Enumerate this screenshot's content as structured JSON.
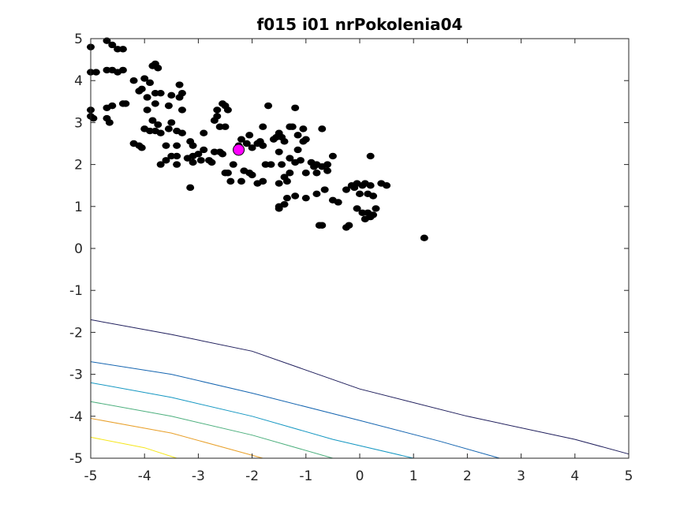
{
  "chart_data": {
    "type": "scatter",
    "title": "f015 i01 nrPokolenia04",
    "xlabel": "",
    "ylabel": "",
    "xlim": [
      -5,
      5
    ],
    "ylim": [
      -5,
      5
    ],
    "xticks": [
      -5,
      -4,
      -3,
      -2,
      -1,
      0,
      1,
      2,
      3,
      4,
      5
    ],
    "yticks": [
      -5,
      -4,
      -3,
      -2,
      -1,
      0,
      1,
      2,
      3,
      4,
      5
    ],
    "grid": false,
    "colors": {
      "points": "#000000",
      "best": "#ff00ff",
      "contours": [
        "#1f1e5c",
        "#1565b0",
        "#1597c2",
        "#4caf7d",
        "#e8a02a",
        "#f5e61a"
      ]
    },
    "contours": [
      {
        "color": "#1f1e5c",
        "points": [
          [
            -5,
            -1.7
          ],
          [
            -3.5,
            -2.05
          ],
          [
            -2,
            -2.45
          ],
          [
            0,
            -3.35
          ],
          [
            2,
            -4.0
          ],
          [
            4,
            -4.55
          ],
          [
            5,
            -4.9
          ]
        ]
      },
      {
        "color": "#1565b0",
        "points": [
          [
            -5,
            -2.7
          ],
          [
            -3.5,
            -3.0
          ],
          [
            -2,
            -3.45
          ],
          [
            0,
            -4.1
          ],
          [
            1.5,
            -4.6
          ],
          [
            2.6,
            -5.0
          ]
        ]
      },
      {
        "color": "#1597c2",
        "points": [
          [
            -5,
            -3.2
          ],
          [
            -3.5,
            -3.55
          ],
          [
            -2,
            -4.0
          ],
          [
            -0.5,
            -4.55
          ],
          [
            1.0,
            -5.0
          ]
        ]
      },
      {
        "color": "#4caf7d",
        "points": [
          [
            -5,
            -3.65
          ],
          [
            -3.5,
            -4.0
          ],
          [
            -2,
            -4.45
          ],
          [
            -0.5,
            -5.0
          ]
        ]
      },
      {
        "color": "#e8a02a",
        "points": [
          [
            -5,
            -4.05
          ],
          [
            -3.5,
            -4.4
          ],
          [
            -1.8,
            -5.0
          ]
        ]
      },
      {
        "color": "#f5e61a",
        "points": [
          [
            -5,
            -4.5
          ],
          [
            -4,
            -4.75
          ],
          [
            -3.4,
            -5.0
          ]
        ]
      }
    ],
    "series": [
      {
        "marker": "circle",
        "points": [
          [
            -5.0,
            4.8
          ],
          [
            -4.7,
            4.95
          ],
          [
            -4.6,
            4.85
          ],
          [
            -4.5,
            4.75
          ],
          [
            -4.4,
            4.75
          ],
          [
            -5.0,
            4.2
          ],
          [
            -4.9,
            4.2
          ],
          [
            -4.7,
            4.25
          ],
          [
            -4.6,
            4.25
          ],
          [
            -4.5,
            4.2
          ],
          [
            -4.4,
            4.25
          ],
          [
            -4.2,
            4.0
          ],
          [
            -4.0,
            4.05
          ],
          [
            -3.8,
            4.4
          ],
          [
            -3.85,
            4.35
          ],
          [
            -3.75,
            4.3
          ],
          [
            -3.9,
            3.95
          ],
          [
            -4.05,
            3.8
          ],
          [
            -4.1,
            3.75
          ],
          [
            -3.95,
            3.6
          ],
          [
            -3.8,
            3.7
          ],
          [
            -3.7,
            3.7
          ],
          [
            -3.5,
            3.65
          ],
          [
            -3.35,
            3.9
          ],
          [
            -3.3,
            3.7
          ],
          [
            -3.35,
            3.6
          ],
          [
            -5.0,
            3.3
          ],
          [
            -5.0,
            3.15
          ],
          [
            -4.95,
            3.1
          ],
          [
            -4.7,
            3.35
          ],
          [
            -4.6,
            3.4
          ],
          [
            -4.4,
            3.45
          ],
          [
            -4.35,
            3.45
          ],
          [
            -4.7,
            3.1
          ],
          [
            -4.65,
            3.0
          ],
          [
            -3.8,
            3.45
          ],
          [
            -3.95,
            3.3
          ],
          [
            -3.85,
            3.05
          ],
          [
            -3.75,
            2.95
          ],
          [
            -3.55,
            3.4
          ],
          [
            -3.3,
            3.3
          ],
          [
            -3.5,
            3.0
          ],
          [
            -4.0,
            2.85
          ],
          [
            -3.9,
            2.8
          ],
          [
            -3.8,
            2.8
          ],
          [
            -3.7,
            2.75
          ],
          [
            -3.55,
            2.85
          ],
          [
            -3.4,
            2.8
          ],
          [
            -3.3,
            2.75
          ],
          [
            -4.2,
            2.5
          ],
          [
            -4.1,
            2.45
          ],
          [
            -4.05,
            2.4
          ],
          [
            -3.6,
            2.45
          ],
          [
            -3.4,
            2.45
          ],
          [
            -3.15,
            2.55
          ],
          [
            -3.1,
            2.45
          ],
          [
            -3.7,
            2.0
          ],
          [
            -3.6,
            2.1
          ],
          [
            -3.5,
            2.2
          ],
          [
            -3.4,
            2.2
          ],
          [
            -3.2,
            2.15
          ],
          [
            -3.1,
            2.2
          ],
          [
            -3.0,
            2.25
          ],
          [
            -3.1,
            2.05
          ],
          [
            -2.95,
            2.1
          ],
          [
            -2.9,
            2.35
          ],
          [
            -2.8,
            2.1
          ],
          [
            -2.75,
            2.05
          ],
          [
            -2.7,
            2.3
          ],
          [
            -2.9,
            2.75
          ],
          [
            -2.7,
            3.05
          ],
          [
            -2.65,
            3.15
          ],
          [
            -2.65,
            3.3
          ],
          [
            -2.55,
            3.45
          ],
          [
            -2.5,
            3.4
          ],
          [
            -2.45,
            3.3
          ],
          [
            -2.6,
            2.9
          ],
          [
            -2.5,
            2.9
          ],
          [
            -2.6,
            2.3
          ],
          [
            -2.5,
            1.8
          ],
          [
            -2.45,
            1.8
          ],
          [
            -2.4,
            1.6
          ],
          [
            -2.35,
            2.0
          ],
          [
            -2.2,
            2.6
          ],
          [
            -2.05,
            2.7
          ],
          [
            -2.15,
            1.85
          ],
          [
            -2.0,
            1.75
          ],
          [
            -2.2,
            1.6
          ],
          [
            -1.9,
            2.5
          ],
          [
            -1.85,
            2.55
          ],
          [
            -1.8,
            2.45
          ],
          [
            -1.75,
            2.0
          ],
          [
            -1.65,
            2.0
          ],
          [
            -1.6,
            2.6
          ],
          [
            -1.55,
            2.65
          ],
          [
            -1.5,
            2.75
          ],
          [
            -1.45,
            2.65
          ],
          [
            -1.7,
            3.4
          ],
          [
            -1.8,
            2.9
          ],
          [
            -1.3,
            2.9
          ],
          [
            -1.25,
            2.9
          ],
          [
            -1.2,
            3.35
          ],
          [
            -1.05,
            2.85
          ],
          [
            -1.15,
            2.7
          ],
          [
            -1.0,
            2.6
          ],
          [
            -1.05,
            2.55
          ],
          [
            -1.15,
            2.35
          ],
          [
            -1.2,
            2.05
          ],
          [
            -1.3,
            2.15
          ],
          [
            -1.1,
            2.1
          ],
          [
            -0.9,
            2.05
          ],
          [
            -0.8,
            2.0
          ],
          [
            -0.7,
            1.95
          ],
          [
            -0.6,
            2.0
          ],
          [
            -0.5,
            2.2
          ],
          [
            -0.7,
            2.85
          ],
          [
            -1.4,
            2.55
          ],
          [
            -1.5,
            2.3
          ],
          [
            -1.45,
            2.0
          ],
          [
            -1.5,
            1.55
          ],
          [
            -1.4,
            1.7
          ],
          [
            -1.3,
            1.8
          ],
          [
            -1.35,
            1.6
          ],
          [
            -1.0,
            1.8
          ],
          [
            -1.2,
            1.25
          ],
          [
            -1.0,
            1.2
          ],
          [
            -0.85,
            1.95
          ],
          [
            -0.8,
            1.8
          ],
          [
            -0.6,
            1.85
          ],
          [
            -0.8,
            1.3
          ],
          [
            -0.65,
            1.4
          ],
          [
            -1.5,
            1.0
          ],
          [
            -1.4,
            1.05
          ],
          [
            -1.35,
            1.2
          ],
          [
            -1.8,
            1.6
          ],
          [
            -2.05,
            1.8
          ],
          [
            -1.9,
            1.55
          ],
          [
            -1.5,
            0.95
          ],
          [
            -0.5,
            1.15
          ],
          [
            -0.4,
            1.1
          ],
          [
            -0.25,
            1.4
          ],
          [
            -0.15,
            1.5
          ],
          [
            -0.1,
            1.45
          ],
          [
            -0.05,
            1.55
          ],
          [
            0.05,
            1.5
          ],
          [
            0.1,
            1.55
          ],
          [
            0.2,
            1.5
          ],
          [
            0.15,
            1.3
          ],
          [
            0.25,
            1.25
          ],
          [
            0.0,
            1.3
          ],
          [
            -0.05,
            0.95
          ],
          [
            0.05,
            0.85
          ],
          [
            0.15,
            0.85
          ],
          [
            0.25,
            0.8
          ],
          [
            0.3,
            0.95
          ],
          [
            0.1,
            0.7
          ],
          [
            0.2,
            0.75
          ],
          [
            0.4,
            1.55
          ],
          [
            0.5,
            1.5
          ],
          [
            0.2,
            2.2
          ],
          [
            -0.2,
            0.55
          ],
          [
            -0.25,
            0.5
          ],
          [
            -0.7,
            0.55
          ],
          [
            -0.75,
            0.55
          ],
          [
            1.2,
            0.25
          ],
          [
            -3.15,
            1.45
          ],
          [
            -2.0,
            2.4
          ],
          [
            -2.1,
            2.5
          ],
          [
            -2.25,
            2.45
          ],
          [
            -2.55,
            2.25
          ],
          [
            -3.4,
            2.0
          ]
        ]
      },
      {
        "marker": "circle-best",
        "points": [
          [
            -2.25,
            2.35
          ]
        ]
      }
    ]
  }
}
